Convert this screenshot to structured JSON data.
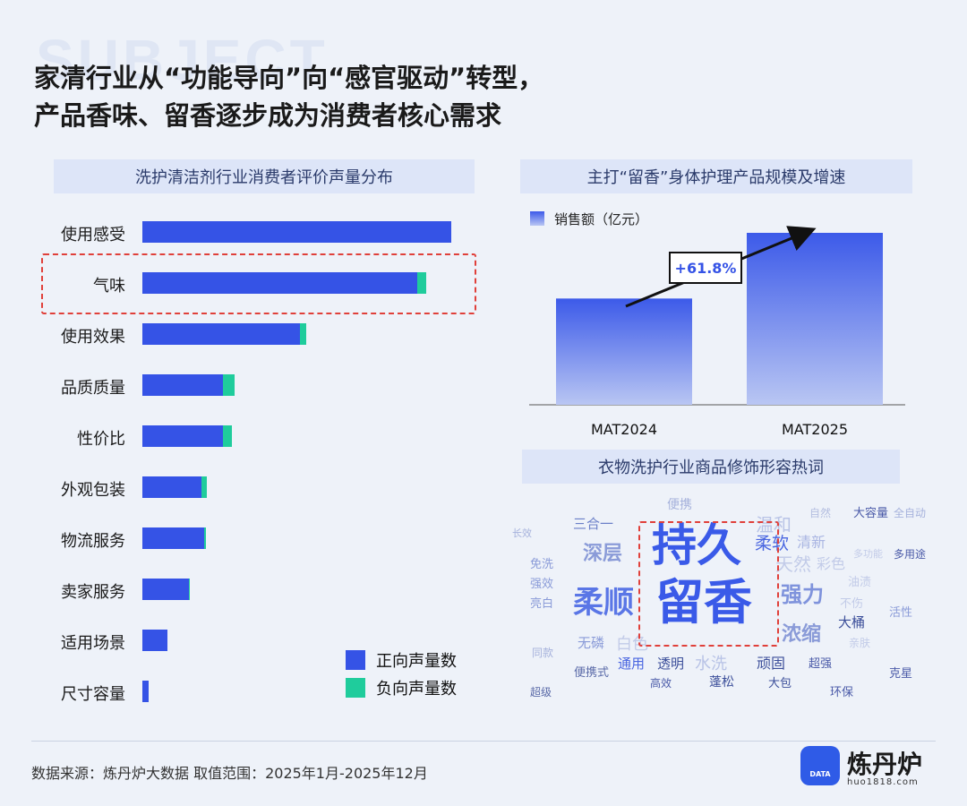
{
  "background_word": "SUBJECT",
  "title": {
    "line1": "家清行业从“功能导向”向“感官驱动”转型，",
    "line2": "产品香味、留香逐步成为消费者核心需求"
  },
  "chart_data": [
    {
      "type": "bar",
      "title": "洗护清洁剂行业消费者评价声量分布",
      "orientation": "horizontal",
      "stacked": true,
      "categories": [
        "使用感受",
        "气味",
        "使用效果",
        "品质质量",
        "性价比",
        "外观包装",
        "物流服务",
        "卖家服务",
        "适用场景",
        "尺寸容量"
      ],
      "series": [
        {
          "name": "正向声量数",
          "color": "#3553e6",
          "values": [
            100,
            89,
            51,
            26,
            26,
            19,
            20,
            15,
            8,
            2
          ]
        },
        {
          "name": "负向声量数",
          "color": "#1fcc9c",
          "values": [
            0,
            3,
            2,
            4,
            3,
            2,
            0.5,
            0.5,
            0,
            0
          ]
        }
      ],
      "highlighted_category": "气味",
      "legend_position": "bottom-right",
      "axes_shown": false
    },
    {
      "type": "bar",
      "title": "主打“留香”身体护理产品规模及增速",
      "categories": [
        "MAT2024",
        "MAT2025"
      ],
      "series": [
        {
          "name": "销售额（亿元）",
          "color": "#4a64ea",
          "values": [
            100,
            161.8
          ]
        }
      ],
      "annotation": "+61.8%",
      "legend_position": "top-left",
      "y_axis_shown": false
    }
  ],
  "word_cloud": {
    "title": "衣物洗护行业商品修饰形容热词",
    "highlighted_words": [
      "持久",
      "留香"
    ],
    "words": [
      {
        "text": "持久",
        "size": 50,
        "color": "#3a5ae8"
      },
      {
        "text": "留香",
        "size": 54,
        "color": "#3a5ae8"
      },
      {
        "text": "柔顺",
        "size": 34,
        "color": "#5a76e6"
      },
      {
        "text": "深层",
        "size": 22,
        "color": "#8a9bd8"
      },
      {
        "text": "三合一",
        "size": 15,
        "color": "#6a7fc8"
      },
      {
        "text": "便携",
        "size": 14,
        "color": "#a6b2dc"
      },
      {
        "text": "温和",
        "size": 20,
        "color": "#b8c3e6"
      },
      {
        "text": "柔软",
        "size": 19,
        "color": "#4a66e0"
      },
      {
        "text": "清新",
        "size": 16,
        "color": "#a9b5e2"
      },
      {
        "text": "天然",
        "size": 20,
        "color": "#c2cbe8"
      },
      {
        "text": "彩色",
        "size": 16,
        "color": "#c2cbe8"
      },
      {
        "text": "强力",
        "size": 24,
        "color": "#7f93dc"
      },
      {
        "text": "浓缩",
        "size": 22,
        "color": "#8a9bd8"
      },
      {
        "text": "大桶",
        "size": 15,
        "color": "#3c4f9a"
      },
      {
        "text": "自然",
        "size": 12,
        "color": "#b4bee0"
      },
      {
        "text": "大容量",
        "size": 13,
        "color": "#4a5aa8"
      },
      {
        "text": "全自动",
        "size": 12,
        "color": "#a6b2dc"
      },
      {
        "text": "多功能",
        "size": 11,
        "color": "#c2cbe8"
      },
      {
        "text": "多用途",
        "size": 12,
        "color": "#4a5aa8"
      },
      {
        "text": "油渍",
        "size": 13,
        "color": "#c2cbe8"
      },
      {
        "text": "不伤",
        "size": 13,
        "color": "#c2cbe8"
      },
      {
        "text": "活性",
        "size": 13,
        "color": "#8a9bd8"
      },
      {
        "text": "亲肤",
        "size": 12,
        "color": "#c2cbe8"
      },
      {
        "text": "长效",
        "size": 11,
        "color": "#a6b2dc"
      },
      {
        "text": "免洗",
        "size": 13,
        "color": "#8a9bd8"
      },
      {
        "text": "强效",
        "size": 13,
        "color": "#8a9bd8"
      },
      {
        "text": "亮白",
        "size": 13,
        "color": "#8a9bd8"
      },
      {
        "text": "无磷",
        "size": 15,
        "color": "#8a9bd8"
      },
      {
        "text": "白色",
        "size": 18,
        "color": "#c2cbe8"
      },
      {
        "text": "同款",
        "size": 12,
        "color": "#a6b2dc"
      },
      {
        "text": "便携式",
        "size": 13,
        "color": "#5a6aa8"
      },
      {
        "text": "通用",
        "size": 15,
        "color": "#4a66e0"
      },
      {
        "text": "透明",
        "size": 15,
        "color": "#3c4f9a"
      },
      {
        "text": "水洗",
        "size": 18,
        "color": "#b8c3e6"
      },
      {
        "text": "顽固",
        "size": 16,
        "color": "#3c4f9a"
      },
      {
        "text": "超强",
        "size": 13,
        "color": "#4a5aa8"
      },
      {
        "text": "克星",
        "size": 13,
        "color": "#4a5aa8"
      },
      {
        "text": "高效",
        "size": 12,
        "color": "#4a5aa8"
      },
      {
        "text": "蓬松",
        "size": 14,
        "color": "#3c4f9a"
      },
      {
        "text": "大包",
        "size": 13,
        "color": "#3c4f9a"
      },
      {
        "text": "超级",
        "size": 12,
        "color": "#5a6aa8"
      },
      {
        "text": "环保",
        "size": 13,
        "color": "#4a5aa8"
      }
    ]
  },
  "footer": {
    "source": "数据来源：炼丹炉大数据    取值范围：2025年1月-2025年12月"
  },
  "logo": {
    "badge": "DATA",
    "name": "炼丹炉",
    "url": "huo1818.com"
  }
}
